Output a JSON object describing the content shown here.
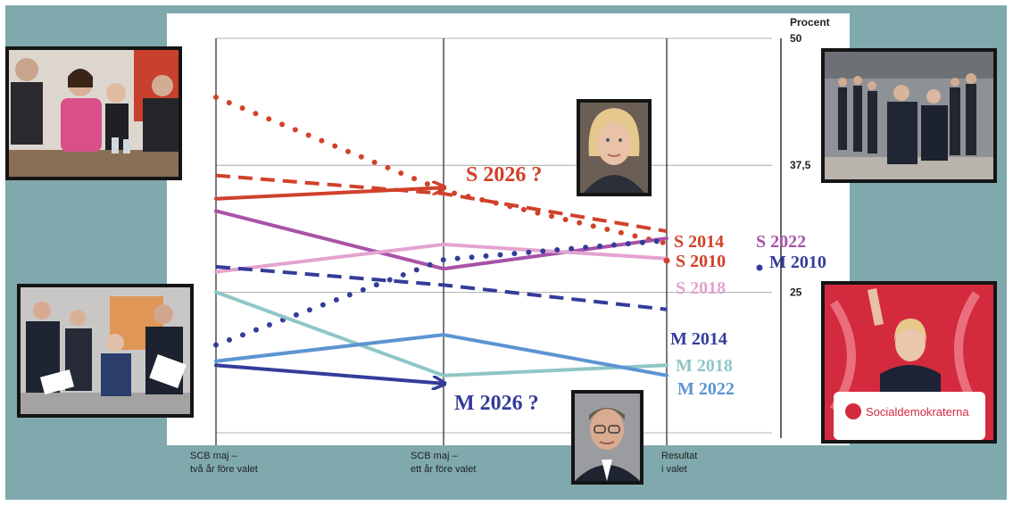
{
  "chart_data": {
    "type": "line",
    "unit_label": "Procent",
    "ylim": [
      10,
      50
    ],
    "y_ticks": [
      {
        "value": 50,
        "label": "50"
      },
      {
        "value": 37.5,
        "label": "37,5"
      },
      {
        "value": 25,
        "label": "25"
      }
    ],
    "categories": [
      [
        "SCB maj –",
        "två år före valet"
      ],
      [
        "SCB maj –",
        "ett år före valet"
      ],
      [
        "Resultat",
        "i valet"
      ]
    ],
    "series": [
      {
        "name": "S 2010",
        "color": "#d1412a",
        "style": "dotted",
        "values": [
          44.2,
          35.0,
          29.8
        ]
      },
      {
        "name": "S 2014",
        "color": "#d1412a",
        "style": "dashed",
        "values": [
          36.5,
          34.7,
          31.0
        ]
      },
      {
        "name": "S 2026 ?",
        "color": "#d1412a",
        "style": "solid-arrow",
        "values": [
          34.2,
          35.3,
          null
        ]
      },
      {
        "name": "S 2022",
        "color": "#a852a8",
        "style": "solid",
        "values": [
          33.0,
          27.3,
          30.3
        ]
      },
      {
        "name": "S 2018",
        "color": "#e3a3d0",
        "style": "solid",
        "values": [
          27.0,
          29.7,
          28.3
        ]
      },
      {
        "name": "M 2010",
        "color": "#343c9a",
        "style": "dotted",
        "values": [
          19.8,
          28.2,
          30.1
        ]
      },
      {
        "name": "M 2014",
        "color": "#343c9a",
        "style": "dashed",
        "values": [
          27.5,
          25.7,
          23.3
        ]
      },
      {
        "name": "M 2018",
        "color": "#8fc6c6",
        "style": "solid",
        "values": [
          25.0,
          16.8,
          17.8
        ]
      },
      {
        "name": "M 2022",
        "color": "#5c94d2",
        "style": "solid",
        "values": [
          18.2,
          20.8,
          16.8
        ]
      },
      {
        "name": "M 2026 ?",
        "color": "#343c9a",
        "style": "solid-arrow",
        "values": [
          17.8,
          16.0,
          null
        ]
      }
    ],
    "grid": true,
    "legend": "direct labels"
  },
  "colors": {
    "background": "#7fa9ad",
    "panel": "#ffffff",
    "s_red": "#d1412a",
    "m_blue": "#343c9a"
  },
  "photos": [
    {
      "name": "photo-party-leaders-table",
      "bg": "#c9c2bc"
    },
    {
      "name": "photo-magdalena-andersson-portrait",
      "bg": "#5b4f46"
    },
    {
      "name": "photo-government-walking",
      "bg": "#7e8186"
    },
    {
      "name": "photo-moderate-leaders-podium",
      "bg": "#c4c2c0"
    },
    {
      "name": "photo-ulf-kristersson-portrait",
      "bg": "#8b8d90"
    },
    {
      "name": "photo-andersson-socialdemokraterna",
      "bg": "#d7253b",
      "sign_text": "Socialdemokraterna"
    }
  ]
}
